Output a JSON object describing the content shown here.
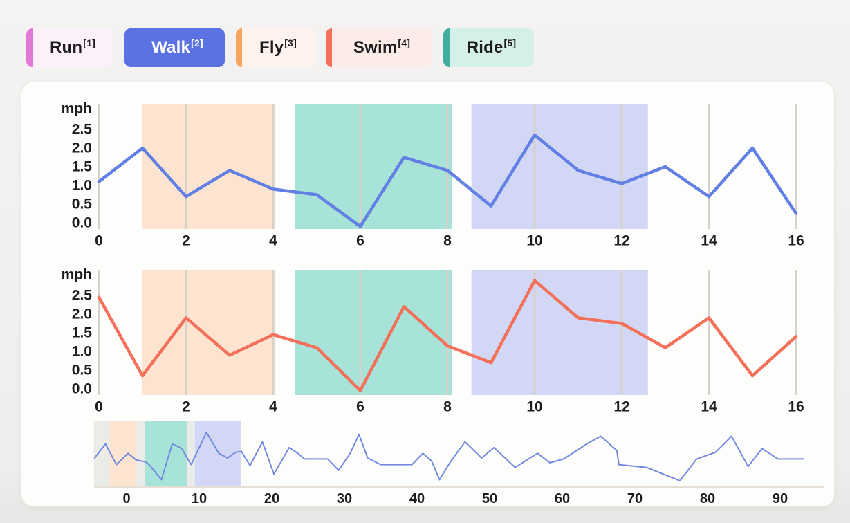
{
  "legend": {
    "items": [
      {
        "id": "run",
        "label": "Run",
        "sup": "[1]",
        "bar_color": "#e178d7",
        "bg_color": "#fcf0fa",
        "text_color": "#1d1c1f",
        "selected": false
      },
      {
        "id": "walk",
        "label": "Walk",
        "sup": "[2]",
        "bar_color": "#5a72e2",
        "bg_color": "#5a72e2",
        "text_color": "#ffffff",
        "selected": true
      },
      {
        "id": "fly",
        "label": "Fly",
        "sup": "[3]",
        "bar_color": "#f8a45e",
        "bg_color": "#fdf3ec",
        "text_color": "#1d1c1f",
        "selected": false
      },
      {
        "id": "swim",
        "label": "Swim",
        "sup": "[4]",
        "bar_color": "#f4705a",
        "bg_color": "#fcece8",
        "text_color": "#1d1c1f",
        "selected": false
      },
      {
        "id": "ride",
        "label": "Ride",
        "sup": "[5]",
        "bar_color": "#3fae9d",
        "bg_color": "#d5f0e8",
        "text_color": "#1d1c1f",
        "selected": false
      }
    ]
  },
  "chart_data": [
    {
      "type": "line",
      "name": "walk-speed",
      "ylabel": "mph",
      "line_color": "#6280e4",
      "x": [
        0,
        1,
        2,
        3,
        4,
        5,
        6,
        7,
        8,
        9,
        10,
        11,
        12,
        13,
        14,
        15,
        16
      ],
      "values": [
        1.1,
        2.0,
        0.7,
        1.4,
        0.9,
        0.75,
        -0.1,
        1.75,
        1.4,
        0.45,
        2.35,
        1.4,
        1.05,
        1.5,
        0.7,
        2.0,
        0.25
      ],
      "xticks": [
        0,
        2,
        4,
        6,
        8,
        10,
        12,
        14,
        16
      ],
      "yticks": [
        0.0,
        0.5,
        1.0,
        1.5,
        2.0,
        2.5
      ],
      "xlim": [
        0,
        16
      ],
      "ylim": [
        -0.17,
        3.2
      ],
      "grid": "vertical",
      "legend_position": "top",
      "regions": [
        {
          "name": "fly-region",
          "from": 1.0,
          "to": 4.05,
          "color": "#fce4d0"
        },
        {
          "name": "ride-region",
          "from": 4.5,
          "to": 8.1,
          "color": "#a7e3d8"
        },
        {
          "name": "walk-region",
          "from": 8.55,
          "to": 12.6,
          "color": "#d2d7f5"
        }
      ]
    },
    {
      "type": "line",
      "name": "swim-speed",
      "ylabel": "mph",
      "line_color": "#f3705a",
      "x": [
        0,
        1,
        2,
        3,
        4,
        5,
        6,
        7,
        8,
        9,
        10,
        11,
        12,
        13,
        14,
        15,
        16
      ],
      "values": [
        2.45,
        0.35,
        1.9,
        0.9,
        1.45,
        1.1,
        -0.05,
        2.2,
        1.15,
        0.7,
        2.9,
        1.9,
        1.75,
        1.1,
        1.9,
        0.35,
        1.4
      ],
      "xticks": [
        0,
        2,
        4,
        6,
        8,
        10,
        12,
        14,
        16
      ],
      "yticks": [
        0.0,
        0.5,
        1.0,
        1.5,
        2.0,
        2.5
      ],
      "xlim": [
        0,
        16
      ],
      "ylim": [
        -0.17,
        3.2
      ],
      "grid": "vertical",
      "regions": [
        {
          "name": "fly-region",
          "from": 1.0,
          "to": 4.05,
          "color": "#fce4d0"
        },
        {
          "name": "ride-region",
          "from": 4.5,
          "to": 8.1,
          "color": "#a7e3d8"
        },
        {
          "name": "walk-region",
          "from": 8.55,
          "to": 12.6,
          "color": "#d2d7f5"
        }
      ]
    },
    {
      "type": "line",
      "name": "timeline-navigator",
      "line_color": "#7289e0",
      "xticks": [
        0,
        10,
        20,
        30,
        40,
        50,
        60,
        70,
        80,
        90
      ],
      "xlim": [
        -4.5,
        96
      ],
      "ylim": [
        0,
        3.3
      ],
      "grid": "off",
      "selection": {
        "from": -4.5,
        "to": 15.7,
        "color": "#ebebe7"
      },
      "regions": [
        {
          "name": "fly-region",
          "from": -2.3,
          "to": 1.3,
          "color": "#fce4d0"
        },
        {
          "name": "ride-region",
          "from": 2.55,
          "to": 8.3,
          "color": "#a7e3d8"
        },
        {
          "name": "walk-region",
          "from": 9.4,
          "to": 15.7,
          "color": "#d2d7f5"
        }
      ],
      "points": [
        [
          -4.4,
          1.35
        ],
        [
          -2.9,
          2.1
        ],
        [
          -1.4,
          1.0
        ],
        [
          0.2,
          1.6
        ],
        [
          1.3,
          1.25
        ],
        [
          2.6,
          1.15
        ],
        [
          3.1,
          1.0
        ],
        [
          4.8,
          0.2
        ],
        [
          6.3,
          2.1
        ],
        [
          7.6,
          1.85
        ],
        [
          8.9,
          1.0
        ],
        [
          11.0,
          2.7
        ],
        [
          12.7,
          1.6
        ],
        [
          13.9,
          1.35
        ],
        [
          15.0,
          1.65
        ],
        [
          15.8,
          1.7
        ],
        [
          17.0,
          0.95
        ],
        [
          18.7,
          2.2
        ],
        [
          20.3,
          0.5
        ],
        [
          22.4,
          1.9
        ],
        [
          23.6,
          1.6
        ],
        [
          24.5,
          1.3
        ],
        [
          26.2,
          1.3
        ],
        [
          27.7,
          1.3
        ],
        [
          29.2,
          0.7
        ],
        [
          30.8,
          1.6
        ],
        [
          32.0,
          2.6
        ],
        [
          33.2,
          1.35
        ],
        [
          35.0,
          1.0
        ],
        [
          37.4,
          1.0
        ],
        [
          39.3,
          1.0
        ],
        [
          40.8,
          1.6
        ],
        [
          42.0,
          1.2
        ],
        [
          43.1,
          0.2
        ],
        [
          44.6,
          1.15
        ],
        [
          46.6,
          2.2
        ],
        [
          48.9,
          1.35
        ],
        [
          50.6,
          1.9
        ],
        [
          53.5,
          0.85
        ],
        [
          56.6,
          1.6
        ],
        [
          58.3,
          1.1
        ],
        [
          60.2,
          1.3
        ],
        [
          63.4,
          2.1
        ],
        [
          65.3,
          2.5
        ],
        [
          67.5,
          1.75
        ],
        [
          67.8,
          1.0
        ],
        [
          71.6,
          0.85
        ],
        [
          76.2,
          0.15
        ],
        [
          78.5,
          1.3
        ],
        [
          81.1,
          1.65
        ],
        [
          83.3,
          2.5
        ],
        [
          85.6,
          0.9
        ],
        [
          87.5,
          1.85
        ],
        [
          89.7,
          1.3
        ],
        [
          93.2,
          1.3
        ]
      ]
    }
  ]
}
